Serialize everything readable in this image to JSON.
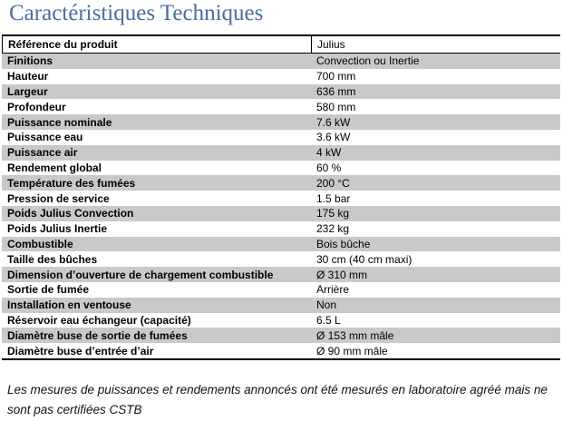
{
  "title": "Caractéristiques Techniques",
  "colors": {
    "title_blue": "#4a6da3",
    "row_shade_gray": "#c9c9c9",
    "border_black": "#000000"
  },
  "table": {
    "header": {
      "label": "Référence du produit",
      "value": "Julius"
    },
    "rows": [
      {
        "label": "Finitions",
        "value": "Convection ou Inertie"
      },
      {
        "label": "Hauteur",
        "value": "700 mm"
      },
      {
        "label": "Largeur",
        "value": "636 mm"
      },
      {
        "label": "Profondeur",
        "value": "580 mm"
      },
      {
        "label": "Puissance nominale",
        "value": "7.6 kW"
      },
      {
        "label": "Puissance eau",
        "value": "3.6 kW"
      },
      {
        "label": "Puissance air",
        "value": "4 kW"
      },
      {
        "label": "Rendement global",
        "value": "60 %"
      },
      {
        "label": "Température des fumées",
        "value": "200 °C"
      },
      {
        "label": "Pression de service",
        "value": "1.5 bar"
      },
      {
        "label": "Poids Julius Convection",
        "value": "175 kg"
      },
      {
        "label": "Poids Julius Inertie",
        "value": "232 kg"
      },
      {
        "label": "Combustible",
        "value": "Bois bûche"
      },
      {
        "label": "Taille des bûches",
        "value": "30 cm (40 cm maxi)"
      },
      {
        "label": "Dimension d’ouverture de chargement combustible",
        "value": "Ø 310 mm"
      },
      {
        "label": "Sortie de fumée",
        "value": "Arrière"
      },
      {
        "label": "Installation en ventouse",
        "value": "Non"
      },
      {
        "label": "Réservoir eau échangeur (capacité)",
        "value": "6.5 L"
      },
      {
        "label": "Diamètre buse de sortie de fumées",
        "value": "Ø 153 mm mâle"
      },
      {
        "label": "Diamètre buse d’entrée d’air",
        "value": "Ø 90 mm mâle"
      }
    ]
  },
  "footer": {
    "note": "Les mesures de puissances et rendements annoncés ont été mesurés en laboratoire agréé mais ne sont pas certifiées CSTB"
  }
}
